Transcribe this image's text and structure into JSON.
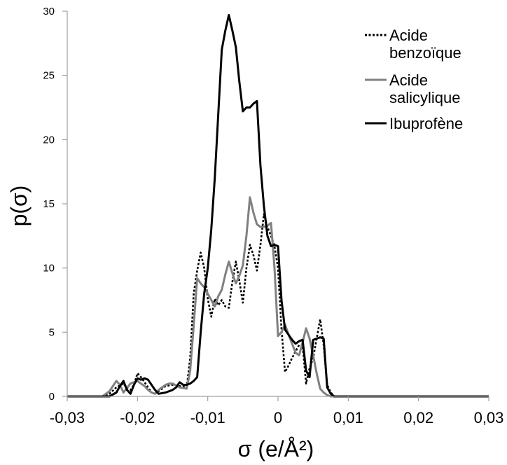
{
  "chart_data": {
    "type": "line",
    "xlabel": "σ (e/Å²)",
    "ylabel": "p(σ)",
    "xlim": [
      -0.03,
      0.03
    ],
    "ylim": [
      0,
      30
    ],
    "xticks": [
      {
        "value": -0.03,
        "label": "-0,03"
      },
      {
        "value": -0.02,
        "label": "-0,02"
      },
      {
        "value": -0.01,
        "label": "-0,01"
      },
      {
        "value": 0,
        "label": "0"
      },
      {
        "value": 0.01,
        "label": "0,01"
      },
      {
        "value": 0.02,
        "label": "0,02"
      },
      {
        "value": 0.03,
        "label": "0,03"
      }
    ],
    "yticks": [
      {
        "value": 0,
        "label": "0"
      },
      {
        "value": 5,
        "label": "5"
      },
      {
        "value": 10,
        "label": "10"
      },
      {
        "value": 15,
        "label": "15"
      },
      {
        "value": 20,
        "label": "20"
      },
      {
        "value": 25,
        "label": "25"
      },
      {
        "value": 30,
        "label": "30"
      }
    ],
    "grid": false,
    "legend_position": "top-right",
    "series": [
      {
        "name": "Acide benzoïque",
        "legend_lines": [
          "Acide",
          "benzoïque"
        ],
        "color": "#000000",
        "dash": "dotted",
        "x": [
          -0.03,
          -0.025,
          -0.024,
          -0.023,
          -0.022,
          -0.0215,
          -0.021,
          -0.0205,
          -0.02,
          -0.0195,
          -0.019,
          -0.0185,
          -0.018,
          -0.0175,
          -0.017,
          -0.016,
          -0.015,
          -0.014,
          -0.013,
          -0.0125,
          -0.012,
          -0.0115,
          -0.011,
          -0.0105,
          -0.01,
          -0.0095,
          -0.009,
          -0.0085,
          -0.008,
          -0.0075,
          -0.007,
          -0.0065,
          -0.006,
          -0.0055,
          -0.005,
          -0.0045,
          -0.004,
          -0.0035,
          -0.003,
          -0.0025,
          -0.002,
          -0.0015,
          -0.001,
          -0.0005,
          0,
          0.0005,
          0.001,
          0.0015,
          0.002,
          0.0025,
          0.003,
          0.0035,
          0.004,
          0.0045,
          0.005,
          0.0055,
          0.006,
          0.0065,
          0.007,
          0.0075,
          0.008,
          0.0085,
          0.009,
          0.01,
          0.015,
          0.02,
          0.025,
          0.03
        ],
        "y": [
          0,
          0,
          0.2,
          0.7,
          1.0,
          0.6,
          0.5,
          0.9,
          1.8,
          1.5,
          1.1,
          0.7,
          0.3,
          0.2,
          0.4,
          0.8,
          0.9,
          0.8,
          0.7,
          3.0,
          8.0,
          9.8,
          11.2,
          10.0,
          7.6,
          6.2,
          7.6,
          7.1,
          7.5,
          7.0,
          6.9,
          8.9,
          10.5,
          9.0,
          7.3,
          10.0,
          11.8,
          11.0,
          9.8,
          11.8,
          14.2,
          13.2,
          12.5,
          11.7,
          10.0,
          5.2,
          1.9,
          2.4,
          3.0,
          3.5,
          4.0,
          4.0,
          1.0,
          2.2,
          3.0,
          4.5,
          6.0,
          4.0,
          0.9,
          0.3,
          0,
          0,
          0,
          0,
          0,
          0,
          0,
          0
        ]
      },
      {
        "name": "Acide salicylique",
        "legend_lines": [
          "Acide",
          "salicylique"
        ],
        "color": "#808080",
        "dash": "solid",
        "x": [
          -0.03,
          -0.025,
          -0.024,
          -0.023,
          -0.0225,
          -0.022,
          -0.021,
          -0.0205,
          -0.02,
          -0.0195,
          -0.019,
          -0.0185,
          -0.018,
          -0.0175,
          -0.017,
          -0.016,
          -0.0155,
          -0.015,
          -0.014,
          -0.013,
          -0.0125,
          -0.012,
          -0.0115,
          -0.011,
          -0.0105,
          -0.01,
          -0.0095,
          -0.009,
          -0.0085,
          -0.008,
          -0.0075,
          -0.007,
          -0.0065,
          -0.006,
          -0.0055,
          -0.005,
          -0.0045,
          -0.004,
          -0.0035,
          -0.003,
          -0.0025,
          -0.002,
          -0.0015,
          -0.001,
          -0.0005,
          0,
          0.0005,
          0.001,
          0.0015,
          0.002,
          0.0025,
          0.003,
          0.0035,
          0.004,
          0.0045,
          0.005,
          0.0055,
          0.006,
          0.0065,
          0.007,
          0.0075,
          0.008,
          0.01,
          0.015,
          0.02,
          0.025,
          0.03
        ],
        "y": [
          0,
          0,
          0.4,
          1.2,
          0.9,
          0.3,
          1.0,
          1.1,
          1.2,
          1.0,
          0.8,
          0.5,
          0.3,
          0.2,
          0.5,
          0.9,
          1.0,
          1.0,
          0.7,
          0.6,
          2.0,
          5.5,
          9.2,
          8.8,
          8.5,
          8.0,
          7.5,
          7.0,
          7.8,
          8.3,
          9.5,
          10.5,
          9.6,
          8.8,
          9.4,
          10.2,
          12.5,
          15.5,
          14.3,
          13.4,
          13.2,
          13.2,
          13.3,
          13.5,
          10.0,
          4.7,
          5.0,
          5.6,
          4.8,
          4.1,
          3.4,
          3.2,
          4.2,
          5.3,
          4.5,
          3.2,
          1.8,
          0.6,
          0.3,
          0.1,
          0,
          0,
          0,
          0,
          0,
          0,
          0
        ]
      },
      {
        "name": "Ibuprofène",
        "legend_lines": [
          "Ibuprofène"
        ],
        "color": "#000000",
        "dash": "solid",
        "x": [
          -0.03,
          -0.025,
          -0.024,
          -0.023,
          -0.0225,
          -0.022,
          -0.0215,
          -0.021,
          -0.0205,
          -0.02,
          -0.0195,
          -0.019,
          -0.0185,
          -0.018,
          -0.0175,
          -0.017,
          -0.016,
          -0.015,
          -0.0145,
          -0.014,
          -0.0135,
          -0.013,
          -0.0125,
          -0.012,
          -0.0115,
          -0.011,
          -0.0105,
          -0.01,
          -0.0095,
          -0.009,
          -0.0085,
          -0.008,
          -0.0075,
          -0.007,
          -0.0065,
          -0.006,
          -0.0055,
          -0.005,
          -0.0045,
          -0.004,
          -0.0035,
          -0.003,
          -0.0025,
          -0.002,
          -0.0015,
          -0.001,
          -0.0005,
          0,
          0.0005,
          0.001,
          0.0015,
          0.002,
          0.0025,
          0.003,
          0.0035,
          0.004,
          0.0045,
          0.005,
          0.0055,
          0.006,
          0.0065,
          0.007,
          0.0075,
          0.008,
          0.0085,
          0.009,
          0.01,
          0.015,
          0.02,
          0.025,
          0.03
        ],
        "y": [
          0,
          0,
          0,
          0.3,
          0.8,
          1.2,
          0.5,
          0.2,
          0.9,
          1.4,
          1.3,
          1.4,
          1.3,
          0.9,
          0.5,
          0.2,
          0.3,
          0.5,
          0.7,
          1.1,
          0.9,
          0.9,
          1.0,
          1.2,
          1.5,
          5.0,
          8.0,
          10.0,
          13.0,
          17.0,
          22.0,
          27.0,
          28.5,
          29.7,
          28.5,
          27.2,
          24.5,
          22.2,
          22.5,
          22.5,
          22.8,
          23.0,
          18.0,
          14.8,
          12.5,
          11.7,
          11.8,
          11.7,
          7.5,
          5.2,
          4.8,
          4.4,
          4.1,
          4.3,
          4.4,
          2.0,
          1.5,
          4.4,
          4.5,
          4.6,
          4.5,
          0.7,
          0.2,
          0,
          0,
          0,
          0,
          0,
          0,
          0,
          0
        ]
      }
    ]
  }
}
